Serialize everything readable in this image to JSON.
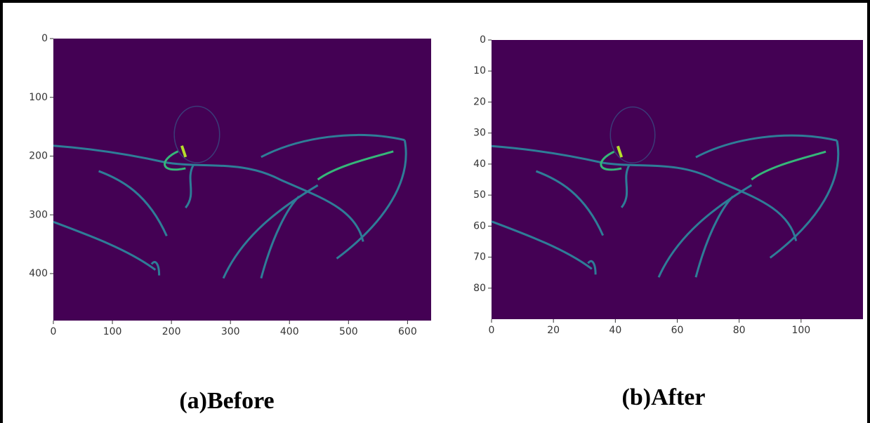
{
  "chart_data": [
    {
      "type": "image",
      "caption": "(a)Before",
      "xlim": [
        0,
        640
      ],
      "ylim": [
        0,
        480
      ],
      "xticks": [
        0,
        100,
        200,
        300,
        400,
        500,
        600
      ],
      "yticks": [
        0,
        100,
        200,
        300,
        400
      ],
      "color": "#440154"
    },
    {
      "type": "image",
      "caption": "(b)After",
      "xlim": [
        0,
        120
      ],
      "ylim": [
        0,
        90
      ],
      "xticks": [
        0,
        20,
        40,
        60,
        80,
        100
      ],
      "yticks": [
        0,
        10,
        20,
        30,
        40,
        50,
        60,
        70,
        80
      ],
      "color": "#440154"
    }
  ]
}
